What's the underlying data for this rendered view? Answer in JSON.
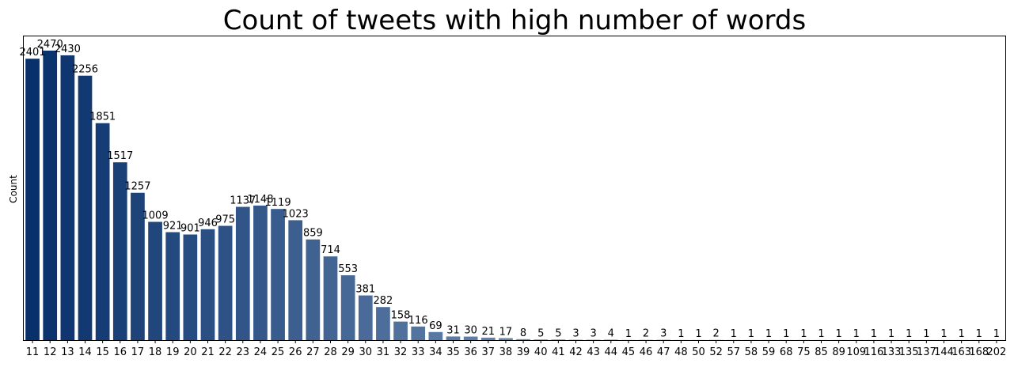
{
  "chart_data": {
    "type": "bar",
    "title": "Count of tweets with high number of words",
    "xlabel": "",
    "ylabel": "Count",
    "categories": [
      "11",
      "12",
      "13",
      "14",
      "15",
      "16",
      "17",
      "18",
      "19",
      "20",
      "21",
      "22",
      "23",
      "24",
      "25",
      "26",
      "27",
      "28",
      "29",
      "30",
      "31",
      "32",
      "33",
      "34",
      "35",
      "36",
      "37",
      "38",
      "39",
      "40",
      "41",
      "42",
      "43",
      "44",
      "45",
      "46",
      "47",
      "48",
      "50",
      "52",
      "57",
      "58",
      "59",
      "68",
      "75",
      "85",
      "89",
      "109",
      "116",
      "133",
      "135",
      "137",
      "144",
      "163",
      "168",
      "202"
    ],
    "values": [
      2401,
      2470,
      2430,
      2256,
      1851,
      1517,
      1257,
      1009,
      921,
      901,
      946,
      975,
      1137,
      1148,
      1119,
      1023,
      859,
      714,
      553,
      381,
      282,
      158,
      116,
      69,
      31,
      30,
      21,
      17,
      8,
      5,
      5,
      3,
      3,
      4,
      1,
      2,
      3,
      1,
      1,
      2,
      1,
      1,
      1,
      1,
      1,
      1,
      1,
      1,
      1,
      1,
      1,
      1,
      1,
      1,
      1,
      1
    ],
    "ylim": [
      0,
      2470
    ],
    "y_ticks_shown": false,
    "grid": false,
    "palette": {
      "dark": "#08306b",
      "light": "#c6dbef"
    }
  }
}
